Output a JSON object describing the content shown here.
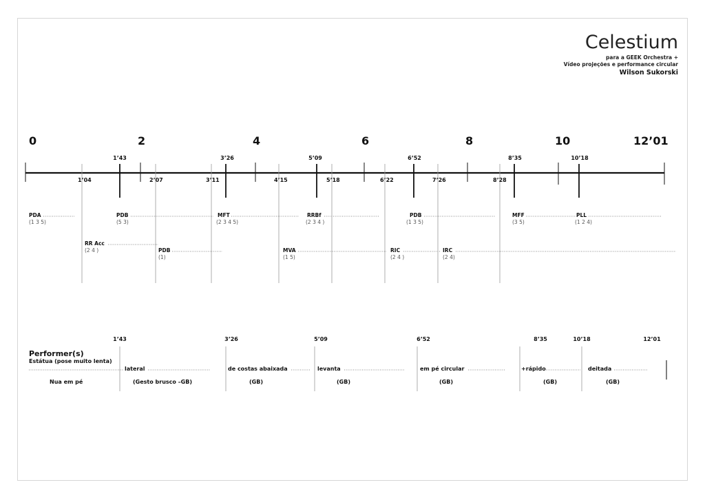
{
  "header": {
    "title": "Celestium",
    "subtitle_1": "para a GEEK Orchestra +",
    "subtitle_2": "Vídeo projeções e performance circular",
    "author": "Wilson Sukorski"
  },
  "timeline": {
    "minute_marks": [
      "0",
      "2",
      "4",
      "6",
      "8",
      "10",
      "12’01"
    ],
    "upper_times": [
      "1’43",
      "3’26",
      "5’09",
      "6’52",
      "8’35",
      "10’18"
    ],
    "lower_times": [
      "1’04",
      "2’07",
      "3’11",
      "4’15",
      "5’18",
      "6’22",
      "7’26",
      "8’28"
    ]
  },
  "instruments_row1": [
    {
      "label": "PDA",
      "groups": "(1  3  5)"
    },
    {
      "label": "PDB",
      "groups": "(5  3)"
    },
    {
      "label": "MFT",
      "groups": "(2  3  4  5)"
    },
    {
      "label": "RRBf",
      "groups": "(2  3  4  )"
    },
    {
      "label": "PDB",
      "groups": "(1 3 5)"
    },
    {
      "label": "MFF",
      "groups": "(3  5)"
    },
    {
      "label": "PLL",
      "groups": "(1 2 4)"
    }
  ],
  "instruments_row2": [
    {
      "label": "RR Acc",
      "groups": "(2  4  )"
    },
    {
      "label": "PDB",
      "groups": "(1)"
    },
    {
      "label": "MVA",
      "groups": "(1 5)"
    },
    {
      "label": "RIC",
      "groups": "(2  4  )"
    },
    {
      "label": "IRC",
      "groups": "(2 4)"
    }
  ],
  "performer": {
    "heading": "Performer(s)",
    "subheading": "Estátua (pose muito lenta)",
    "times": [
      "1’43",
      "3’26",
      "5’09",
      "6’52",
      "8’35",
      "10’18",
      "12’01"
    ],
    "actions": [
      "lateral",
      "de costas abaixada",
      "levanta",
      "em pé circular",
      "+rápido",
      "deitada"
    ],
    "notes": [
      "Nua em pé",
      "(Gesto brusco –GB)",
      "(GB)",
      "(GB)",
      "(GB)",
      "(GB)",
      "(GB)"
    ]
  }
}
